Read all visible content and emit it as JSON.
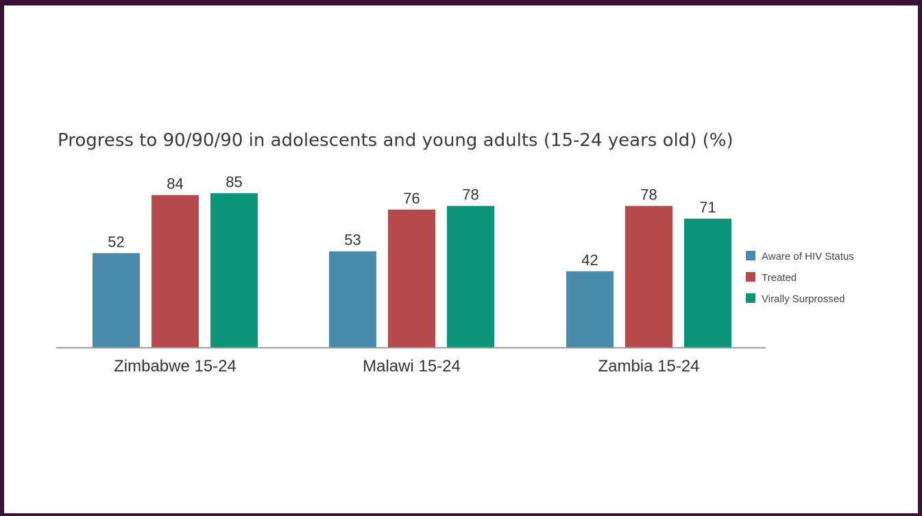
{
  "chart_data": {
    "type": "bar",
    "title": "Progress to 90/90/90 in adolescents and young adults (15-24 years old) (%)",
    "xlabel": "",
    "ylabel": "",
    "categories": [
      "Zimbabwe 15-24",
      "Malawi 15-24",
      "Zambia 15-24"
    ],
    "series": [
      {
        "name": "Aware of HIV Status",
        "values": [
          52,
          53,
          42
        ],
        "color": "#4a8aaa"
      },
      {
        "name": "Treated",
        "values": [
          84,
          76,
          78
        ],
        "color": "#b64a4a"
      },
      {
        "name": "Virally Surprossed",
        "values": [
          85,
          78,
          71
        ],
        "color": "#0c9478"
      }
    ],
    "ylim": [
      0,
      85
    ],
    "grid": false,
    "legend": "right",
    "data_labels": true
  },
  "colors": {
    "frame": "#3d1238",
    "axis": "#999999"
  }
}
